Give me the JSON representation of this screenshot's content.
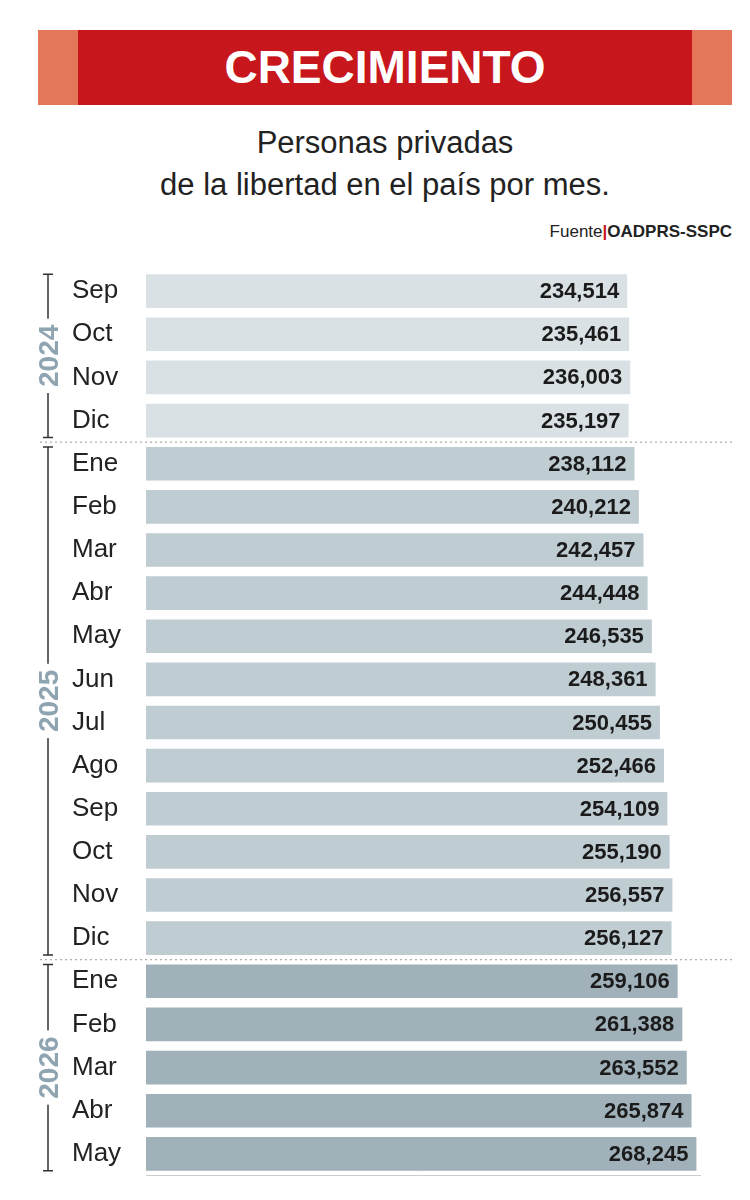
{
  "chart_data": {
    "type": "bar",
    "orientation": "horizontal",
    "title": "CRECIMIENTO",
    "subtitle": [
      "Personas privadas",
      "de la libertad en el país por mes."
    ],
    "source": "Fuente|OADPRS-SSPC",
    "categories": [
      "Sep",
      "Oct",
      "Nov",
      "Dic",
      "Ene",
      "Feb",
      "Mar",
      "Abr",
      "May",
      "Jun",
      "Jul",
      "Ago",
      "Sep",
      "Oct",
      "Nov",
      "Dic",
      "Ene",
      "Feb",
      "Mar",
      "Abr",
      "May"
    ],
    "values": [
      234514,
      235461,
      236003,
      235197,
      238112,
      240212,
      242457,
      244448,
      246535,
      248361,
      250455,
      252466,
      254109,
      255190,
      256557,
      256127,
      259106,
      261388,
      263552,
      265874,
      268245
    ],
    "value_labels": [
      "234,514",
      "235,461",
      "236,003",
      "235,197",
      "238,112",
      "240,212",
      "242,457",
      "244,448",
      "246,535",
      "248,361",
      "250,455",
      "252,466",
      "254,109",
      "255,190",
      "256,557",
      "256,127",
      "259,106",
      "261,388",
      "263,552",
      "265,874",
      "268,245"
    ],
    "groups": [
      {
        "label": "2024",
        "count": 4,
        "color": "#d9e1e5"
      },
      {
        "label": "2025",
        "count": 12,
        "color": "#bfccd2"
      },
      {
        "label": "2026",
        "count": 5,
        "color": "#a0b1ba"
      }
    ],
    "xlim": [
      0,
      270000
    ],
    "grid": false,
    "data_labels": true,
    "tick_labels": "y"
  }
}
